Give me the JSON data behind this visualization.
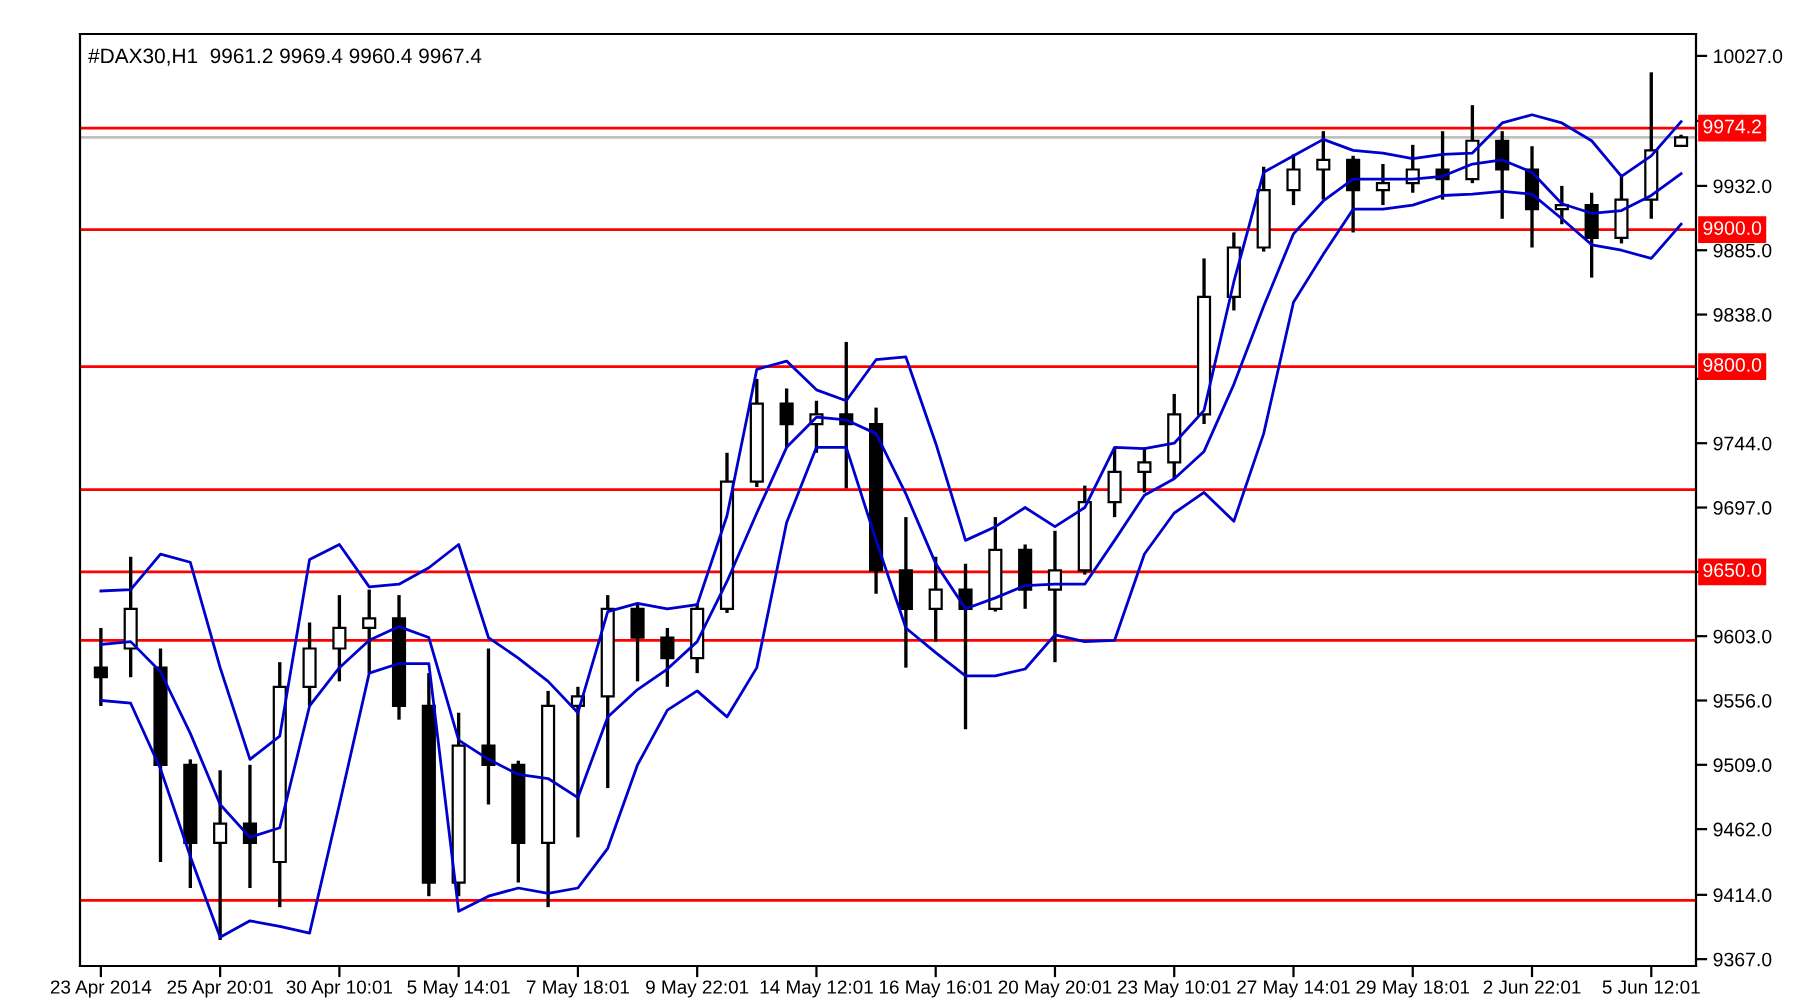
{
  "chart_data": {
    "type": "candlestick",
    "title": "#DAX30,H1  9961.2 9969.4 9960.4 9967.4",
    "categories": [
      "23 Apr 2014",
      null,
      null,
      null,
      "25 Apr 20:01",
      null,
      null,
      null,
      "30 Apr 10:01",
      null,
      null,
      null,
      "5 May 14:01",
      null,
      null,
      null,
      "7 May 18:01",
      null,
      null,
      null,
      "9 May 22:01",
      null,
      null,
      null,
      "14 May 12:01",
      null,
      null,
      null,
      "16 May 16:01",
      null,
      null,
      null,
      "20 May 20:01",
      null,
      null,
      null,
      "23 May 10:01",
      null,
      null,
      null,
      "27 May 14:01",
      null,
      null,
      null,
      "29 May 18:01",
      null,
      null,
      null,
      "2 Jun 22:01",
      null,
      null,
      null,
      "5 Jun 12:01",
      null
    ],
    "ohlc": [
      [
        9580,
        9609,
        9552,
        9573
      ],
      [
        9594,
        9661,
        9573,
        9623
      ],
      [
        9580,
        9594,
        9438,
        9509
      ],
      [
        9509,
        9513,
        9419,
        9452
      ],
      [
        9452,
        9505,
        9381,
        9466
      ],
      [
        9466,
        9509,
        9419,
        9452
      ],
      [
        9438,
        9584,
        9405,
        9566
      ],
      [
        9566,
        9613,
        9552,
        9594
      ],
      [
        9594,
        9633,
        9570,
        9609
      ],
      [
        9609,
        9637,
        9576,
        9616
      ],
      [
        9616,
        9633,
        9542,
        9552
      ],
      [
        9552,
        9576,
        9413,
        9423
      ],
      [
        9423,
        9547,
        9413,
        9523
      ],
      [
        9523,
        9594,
        9480,
        9509
      ],
      [
        9509,
        9512,
        9423,
        9452
      ],
      [
        9452,
        9563,
        9405,
        9552
      ],
      [
        9552,
        9566,
        9456,
        9559
      ],
      [
        9559,
        9633,
        9492,
        9623
      ],
      [
        9623,
        9627,
        9570,
        9602
      ],
      [
        9602,
        9609,
        9566,
        9587
      ],
      [
        9587,
        9627,
        9576,
        9623
      ],
      [
        9623,
        9737,
        9620,
        9716
      ],
      [
        9716,
        9791,
        9712,
        9773
      ],
      [
        9773,
        9784,
        9741,
        9758
      ],
      [
        9758,
        9775,
        9737,
        9765
      ],
      [
        9765,
        9818,
        9711,
        9758
      ],
      [
        9758,
        9770,
        9634,
        9651
      ],
      [
        9651,
        9690,
        9580,
        9623
      ],
      [
        9623,
        9661,
        9599,
        9637
      ],
      [
        9637,
        9656,
        9535,
        9623
      ],
      [
        9623,
        9690,
        9621,
        9666
      ],
      [
        9666,
        9670,
        9623,
        9637
      ],
      [
        9637,
        9680,
        9584,
        9651
      ],
      [
        9651,
        9713,
        9648,
        9701
      ],
      [
        9701,
        9741,
        9690,
        9723
      ],
      [
        9723,
        9741,
        9708,
        9730
      ],
      [
        9730,
        9780,
        9718,
        9765
      ],
      [
        9765,
        9879,
        9758,
        9851
      ],
      [
        9851,
        9898,
        9841,
        9887
      ],
      [
        9887,
        9946,
        9884,
        9929
      ],
      [
        9929,
        9955,
        9918,
        9944
      ],
      [
        9944,
        9972,
        9922,
        9951
      ],
      [
        9951,
        9954,
        9898,
        9929
      ],
      [
        9929,
        9948,
        9918,
        9934
      ],
      [
        9934,
        9962,
        9927,
        9944
      ],
      [
        9944,
        9972,
        9922,
        9937
      ],
      [
        9937,
        9991,
        9934,
        9965
      ],
      [
        9965,
        9972,
        9908,
        9944
      ],
      [
        9944,
        9961,
        9887,
        9915
      ],
      [
        9915,
        9932,
        9904,
        9918
      ],
      [
        9918,
        9927,
        9865,
        9894
      ],
      [
        9894,
        9939,
        9890,
        9922
      ],
      [
        9922,
        10015,
        9908,
        9958
      ],
      [
        9961.2,
        9969.4,
        9960.4,
        9967.4
      ]
    ],
    "series": [
      {
        "type": "line",
        "color": "#0000cc",
        "values": [
          9636,
          9637,
          9663,
          9657,
          9580,
          9513,
          9530,
          9659,
          9670,
          9639,
          9641,
          9653,
          9670,
          9602,
          9587,
          9570,
          9547,
          9621,
          9627,
          9623,
          9626,
          9691,
          9798,
          9804,
          9783,
          9775,
          9805,
          9807,
          9744,
          9673,
          9683,
          9697,
          9683,
          9697,
          9741,
          9740,
          9744,
          9768,
          9862,
          9942,
          9954,
          9966,
          9958,
          9956,
          9952,
          9955,
          9956,
          9978,
          9984,
          9978,
          9965,
          9939,
          9954,
          9979
        ]
      },
      {
        "type": "line",
        "color": "#0000cc",
        "values": [
          9597,
          9599,
          9577,
          9532,
          9480,
          9456,
          9463,
          9552,
          9580,
          9600,
          9610,
          9602,
          9527,
          9513,
          9502,
          9499,
          9485,
          9544,
          9564,
          9579,
          9599,
          9643,
          9693,
          9741,
          9763,
          9761,
          9751,
          9707,
          9656,
          9623,
          9631,
          9640,
          9641,
          9641,
          9673,
          9706,
          9718,
          9738,
          9787,
          9844,
          9897,
          9921,
          9937,
          9937,
          9937,
          9939,
          9948,
          9951,
          9942,
          9919,
          9912,
          9914,
          9925,
          9941
        ]
      },
      {
        "type": "line",
        "color": "#0000cc",
        "values": [
          9556,
          9554,
          9506,
          9442,
          9383,
          9395,
          9391,
          9386,
          9480,
          9576,
          9583,
          9583,
          9402,
          9413,
          9419,
          9415,
          9419,
          9448,
          9509,
          9549,
          9563,
          9544,
          9580,
          9686,
          9741,
          9741,
          9673,
          9609,
          9591,
          9574,
          9574,
          9579,
          9604,
          9599,
          9600,
          9663,
          9693,
          9708,
          9687,
          9751,
          9847,
          9882,
          9915,
          9915,
          9918,
          9925,
          9926,
          9928,
          9926,
          9908,
          9889,
          9885,
          9879,
          9904
        ]
      }
    ],
    "ylim": [
      9362,
      10043
    ],
    "yticks": [
      {
        "value": 10027,
        "label": "10027.0"
      },
      {
        "value": 9979.5,
        "label": null
      },
      {
        "value": 9932,
        "label": "9932.0"
      },
      {
        "value": 9885,
        "label": "9885.0"
      },
      {
        "value": 9838,
        "label": "9838.0"
      },
      {
        "value": 9791,
        "label": null
      },
      {
        "value": 9744,
        "label": "9744.0"
      },
      {
        "value": 9697,
        "label": "9697.0"
      },
      {
        "value": 9650,
        "label": null
      },
      {
        "value": 9603,
        "label": "9603.0"
      },
      {
        "value": 9556,
        "label": "9556.0"
      },
      {
        "value": 9509,
        "label": "9509.0"
      },
      {
        "value": 9462,
        "label": "9462.0"
      },
      {
        "value": 9414,
        "label": "9414.0"
      },
      {
        "value": 9367,
        "label": "9367.0"
      }
    ],
    "ref_lines": [
      {
        "axis": "y",
        "value": 9974.2,
        "label": "9974.2",
        "color": "#ff0000"
      },
      {
        "axis": "y",
        "value": 9967.4,
        "color": "#c0c0c0"
      },
      {
        "axis": "y",
        "value": 9900.0,
        "label": "9900.0",
        "color": "#ff0000"
      },
      {
        "axis": "y",
        "value": 9800.0,
        "label": "9800.0",
        "color": "#ff0000"
      },
      {
        "axis": "y",
        "value": 9710,
        "color": "#ff0000"
      },
      {
        "axis": "y",
        "value": 9650.0,
        "label": "9650.0",
        "color": "#ff0000"
      },
      {
        "axis": "y",
        "value": 9600,
        "color": "#ff0000"
      },
      {
        "axis": "y",
        "value": 9410,
        "color": "#ff0000"
      }
    ],
    "grid": false,
    "legend": false
  }
}
